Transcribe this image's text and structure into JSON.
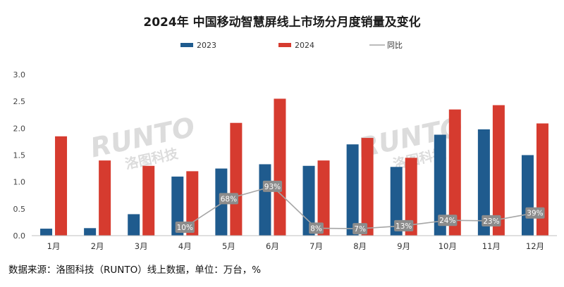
{
  "chart_data": {
    "type": "bar",
    "title": "2024年 中国移动智慧屏线上市场分月度销量及变化",
    "categories": [
      "1月",
      "2月",
      "3月",
      "4月",
      "5月",
      "6月",
      "7月",
      "8月",
      "9月",
      "10月",
      "11月",
      "12月"
    ],
    "series": [
      {
        "name": "2023",
        "color": "#1f5b8e",
        "values": [
          0.13,
          0.14,
          0.4,
          1.1,
          1.25,
          1.33,
          1.3,
          1.7,
          1.28,
          1.88,
          1.98,
          1.5
        ]
      },
      {
        "name": "2024",
        "color": "#d63b2f",
        "values": [
          1.85,
          1.4,
          1.3,
          1.2,
          2.1,
          2.55,
          1.4,
          1.82,
          1.45,
          2.35,
          2.43,
          2.09
        ]
      }
    ],
    "yoy": {
      "name": "同比",
      "color": "#a6a6a6",
      "labels": [
        "",
        "",
        "",
        "10%",
        "68%",
        "93%",
        "8%",
        "7%",
        "13%",
        "24%",
        "23%",
        "39%"
      ],
      "values": [
        null,
        null,
        null,
        10,
        68,
        93,
        8,
        7,
        13,
        24,
        23,
        39
      ]
    },
    "ylim": [
      0,
      3.0
    ],
    "yticks": [
      "0.0",
      "0.5",
      "1.0",
      "1.5",
      "2.0",
      "2.5",
      "3.0"
    ],
    "legend_position": "top-center",
    "grid": false
  },
  "source_note": "数据来源：洛图科技（RUNTO）线上数据，单位：万台，%",
  "watermark": {
    "brand": "RUNTO",
    "sub": "洛图科技"
  }
}
